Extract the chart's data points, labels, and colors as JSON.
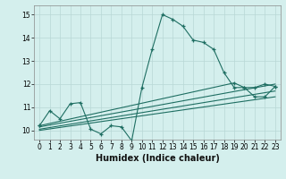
{
  "xlabel": "Humidex (Indice chaleur)",
  "xlim": [
    -0.5,
    23.5
  ],
  "ylim": [
    9.6,
    15.4
  ],
  "xticks": [
    0,
    1,
    2,
    3,
    4,
    5,
    6,
    7,
    8,
    9,
    10,
    11,
    12,
    13,
    14,
    15,
    16,
    17,
    18,
    19,
    20,
    21,
    22,
    23
  ],
  "yticks": [
    10,
    11,
    12,
    13,
    14,
    15
  ],
  "bg_color": "#d4efed",
  "grid_color": "#b8d8d6",
  "line_color": "#1e6e62",
  "main_x": [
    0,
    1,
    2,
    3,
    4,
    5,
    6,
    7,
    8,
    9,
    10,
    11,
    12,
    13,
    14,
    15,
    16,
    17,
    18,
    19,
    20,
    21,
    22,
    23
  ],
  "main_y": [
    10.2,
    10.85,
    10.5,
    11.15,
    11.2,
    10.05,
    9.85,
    10.2,
    10.15,
    9.55,
    11.85,
    13.5,
    15.0,
    14.8,
    14.5,
    13.9,
    13.8,
    13.5,
    12.5,
    11.85,
    11.85,
    11.45,
    11.45,
    11.9
  ],
  "trend1_x": [
    0,
    19,
    20,
    21,
    22,
    23
  ],
  "trend1_y": [
    10.2,
    12.05,
    11.85,
    11.85,
    12.0,
    11.9
  ],
  "trend2_x": [
    0,
    23
  ],
  "trend2_y": [
    10.15,
    12.0
  ],
  "trend3_x": [
    0,
    23
  ],
  "trend3_y": [
    10.05,
    11.7
  ],
  "trend4_x": [
    0,
    23
  ],
  "trend4_y": [
    10.0,
    11.45
  ]
}
